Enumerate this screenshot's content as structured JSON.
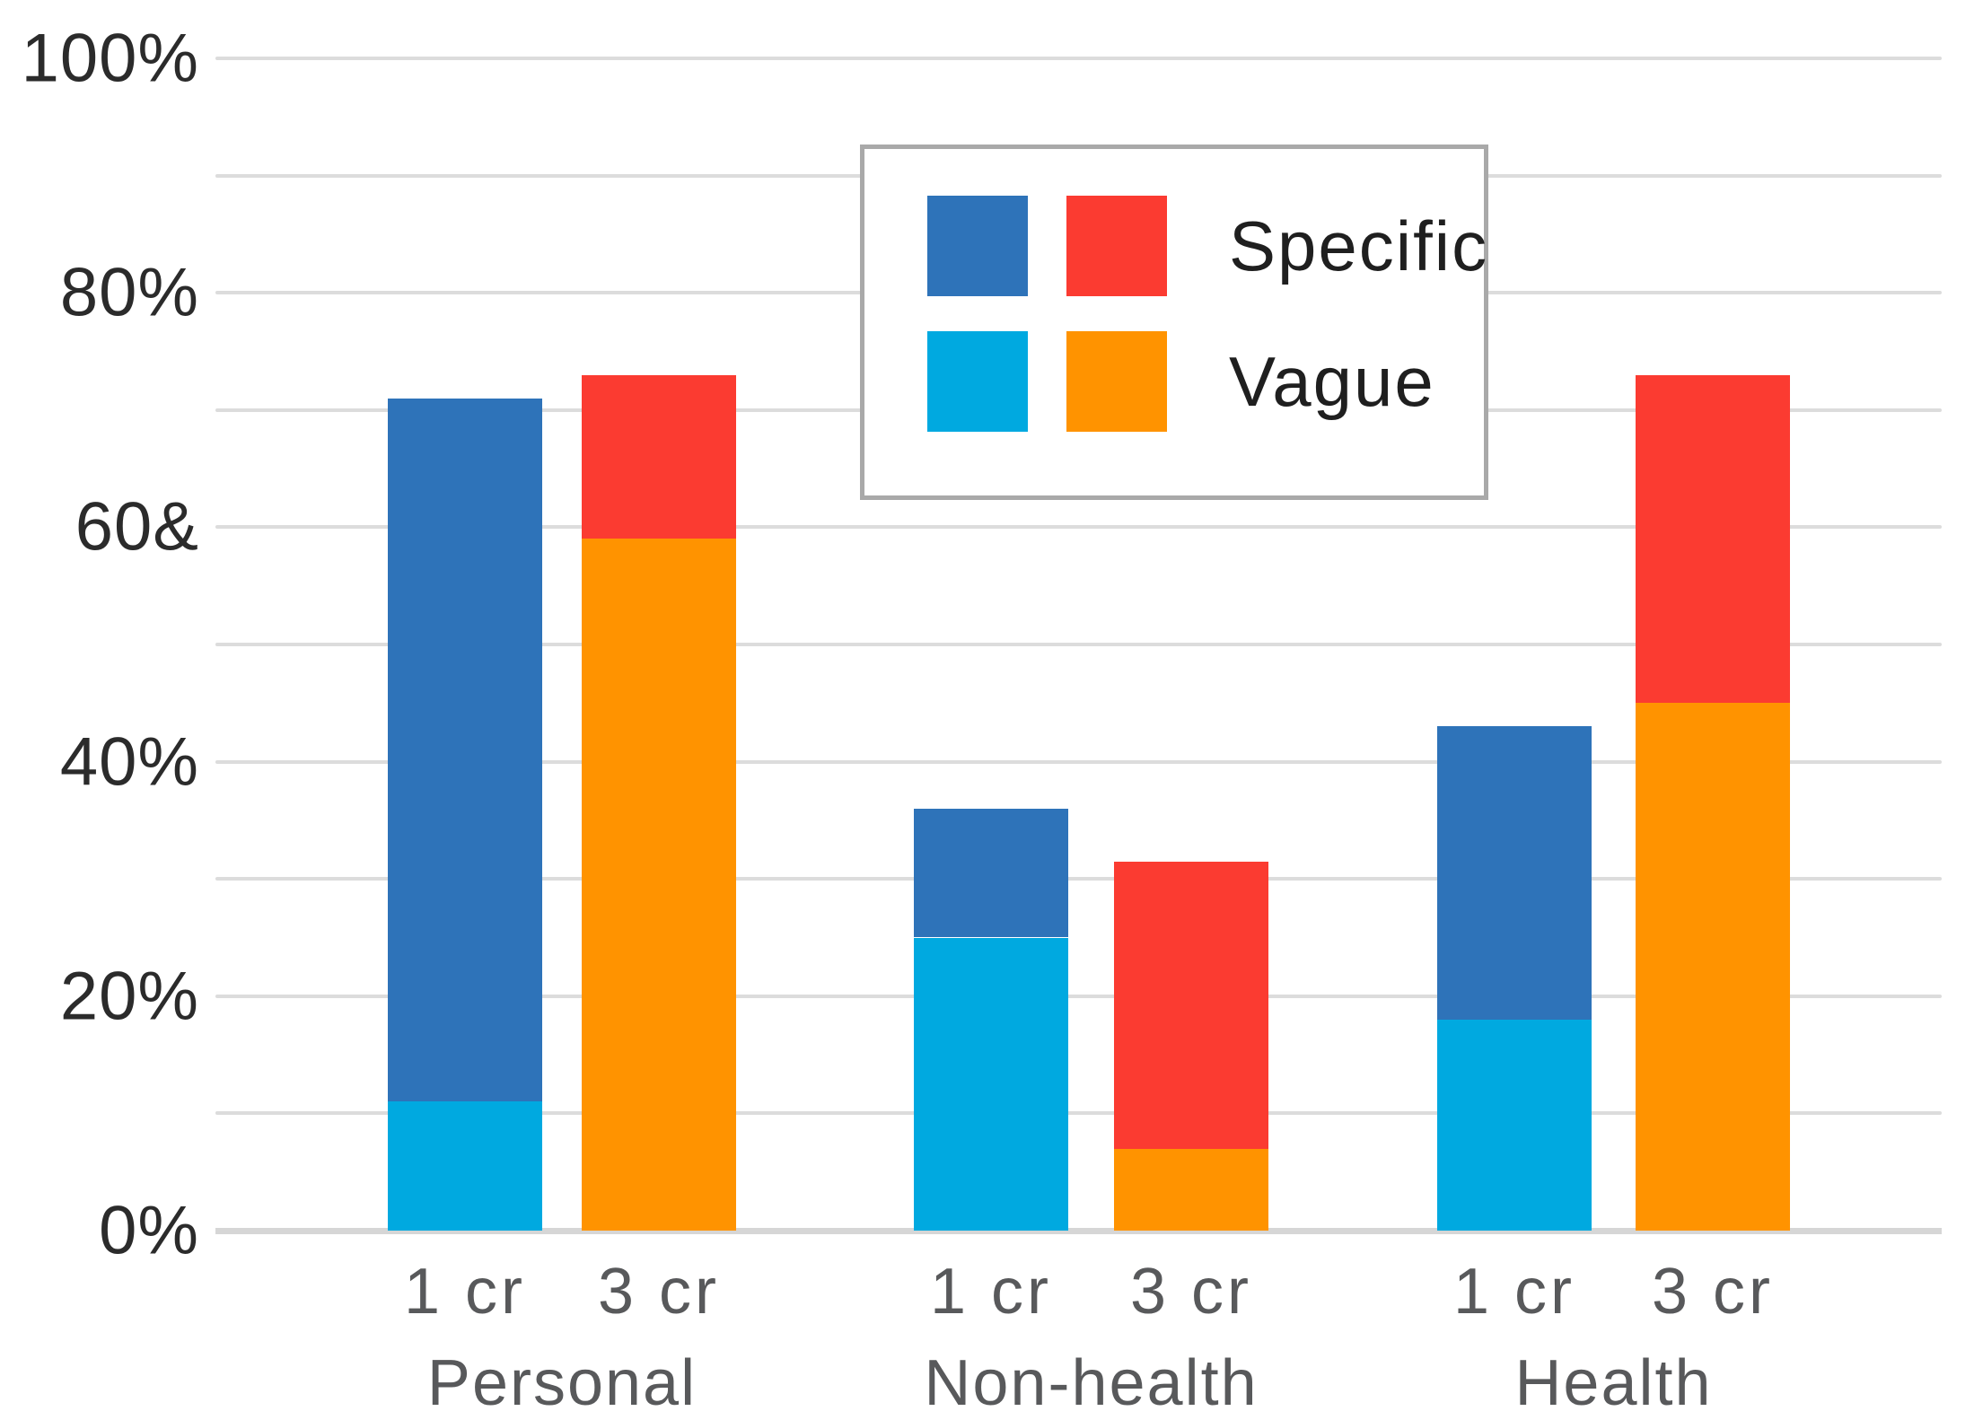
{
  "chart_data": {
    "type": "bar",
    "stacked": true,
    "title": "",
    "xlabel": "",
    "ylabel": "",
    "y_axis": {
      "range": [
        0,
        100
      ],
      "gridline_step": 10,
      "grid": true,
      "tick_labels": [
        {
          "value": 0,
          "label": "0%"
        },
        {
          "value": 20,
          "label": "20%"
        },
        {
          "value": 40,
          "label": "40%"
        },
        {
          "value": 60,
          "label": "60&"
        },
        {
          "value": 80,
          "label": "80%"
        },
        {
          "value": 100,
          "label": "100%"
        }
      ]
    },
    "series_names": [
      "Vague",
      "Specific"
    ],
    "groups": [
      {
        "label": "Personal",
        "bars": [
          {
            "tick": "1 cr",
            "palette": "cool",
            "vague": 11,
            "specific": 60
          },
          {
            "tick": "3 cr",
            "palette": "warm",
            "vague": 59,
            "specific": 14
          }
        ]
      },
      {
        "label": "Non-health",
        "bars": [
          {
            "tick": "1 cr",
            "palette": "cool",
            "vague": 25,
            "specific": 11
          },
          {
            "tick": "3 cr",
            "palette": "warm",
            "vague": 7,
            "specific": 24.5
          }
        ]
      },
      {
        "label": "Health",
        "bars": [
          {
            "tick": "1 cr",
            "palette": "cool",
            "vague": 18,
            "specific": 25
          },
          {
            "tick": "3 cr",
            "palette": "warm",
            "vague": 45,
            "specific": 28
          }
        ]
      }
    ],
    "legend": {
      "position": "top-center-inside",
      "entries": [
        {
          "label": "Specific",
          "swatch_colors": [
            "#2e73b9",
            "#fb3b31"
          ]
        },
        {
          "label": "Vague",
          "swatch_colors": [
            "#00a9e0",
            "#ff9300"
          ]
        }
      ]
    },
    "colors": {
      "specific_cool": "#2e73b9",
      "vague_cool": "#00a9e0",
      "specific_warm": "#fb3b31",
      "vague_warm": "#ff9300",
      "gridline": "#dcdcdc",
      "axis_line": "#d6d6d6",
      "y_label_text": "#2b2b2b",
      "x_label_text": "#58595b",
      "legend_border": "#a9a9a9"
    }
  }
}
